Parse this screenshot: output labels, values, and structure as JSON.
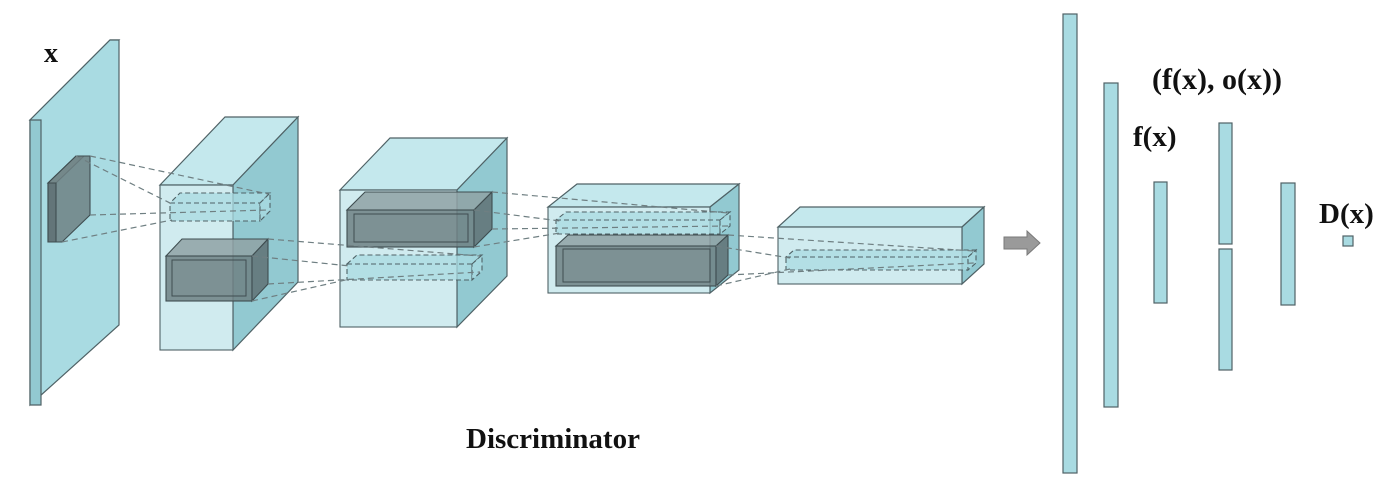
{
  "labels": {
    "input": "x",
    "title": "Discriminator",
    "feature_pair": "(f(x), o(x))",
    "feature": "f(x)",
    "output": "D(x)"
  },
  "colors": {
    "block_fill": "#a9dbe2",
    "block_side": "#92c9d1",
    "block_top": "#c4e8ed",
    "edge": "#4f6266",
    "kernel_fill": "#7a8a8c",
    "dash": "#6f7f82",
    "arrow": "#9a9a9a",
    "text": "#111111"
  }
}
